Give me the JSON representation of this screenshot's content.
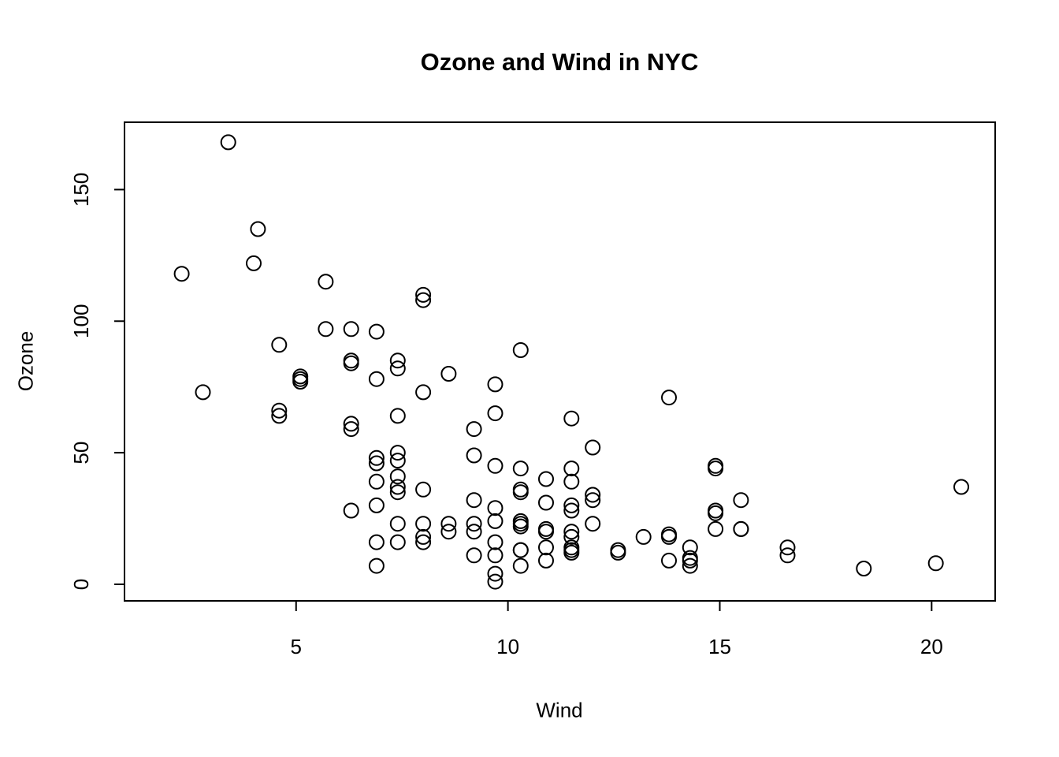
{
  "chart_data": {
    "type": "scatter",
    "title": "Ozone and Wind in NYC",
    "xlabel": "Wind",
    "ylabel": "Ozone",
    "x_ticks": [
      5,
      10,
      15,
      20
    ],
    "y_ticks": [
      0,
      50,
      100,
      150
    ],
    "xlim": [
      0.95,
      21.5
    ],
    "ylim": [
      -6.3,
      175.6
    ],
    "grid": false,
    "legend": null,
    "marker": "open-circle",
    "point_color": "#000000",
    "background": "#ffffff",
    "points": [
      [
        7.4,
        41
      ],
      [
        8.0,
        36
      ],
      [
        12.6,
        12
      ],
      [
        11.5,
        18
      ],
      [
        14.9,
        28
      ],
      [
        8.6,
        23
      ],
      [
        13.8,
        19
      ],
      [
        20.1,
        8
      ],
      [
        6.9,
        7
      ],
      [
        9.7,
        16
      ],
      [
        9.2,
        11
      ],
      [
        10.9,
        14
      ],
      [
        13.2,
        18
      ],
      [
        11.5,
        14
      ],
      [
        12.0,
        34
      ],
      [
        18.4,
        6
      ],
      [
        11.5,
        30
      ],
      [
        9.7,
        11
      ],
      [
        9.7,
        1
      ],
      [
        16.6,
        11
      ],
      [
        9.7,
        4
      ],
      [
        12.0,
        32
      ],
      [
        12.0,
        23
      ],
      [
        14.9,
        45
      ],
      [
        5.7,
        115
      ],
      [
        7.4,
        37
      ],
      [
        9.7,
        29
      ],
      [
        13.8,
        71
      ],
      [
        11.5,
        39
      ],
      [
        8.0,
        23
      ],
      [
        14.9,
        21
      ],
      [
        20.7,
        37
      ],
      [
        9.2,
        20
      ],
      [
        11.5,
        12
      ],
      [
        10.3,
        13
      ],
      [
        4.1,
        135
      ],
      [
        9.2,
        49
      ],
      [
        9.2,
        32
      ],
      [
        4.6,
        64
      ],
      [
        10.9,
        40
      ],
      [
        5.1,
        77
      ],
      [
        6.3,
        97
      ],
      [
        5.7,
        97
      ],
      [
        7.4,
        85
      ],
      [
        14.3,
        10
      ],
      [
        14.9,
        27
      ],
      [
        14.3,
        7
      ],
      [
        6.9,
        48
      ],
      [
        10.3,
        35
      ],
      [
        6.3,
        61
      ],
      [
        5.1,
        79
      ],
      [
        11.5,
        63
      ],
      [
        6.9,
        16
      ],
      [
        8.6,
        80
      ],
      [
        8.0,
        108
      ],
      [
        8.6,
        20
      ],
      [
        12.0,
        52
      ],
      [
        7.4,
        82
      ],
      [
        7.4,
        50
      ],
      [
        7.4,
        64
      ],
      [
        9.2,
        59
      ],
      [
        6.9,
        39
      ],
      [
        13.8,
        9
      ],
      [
        7.4,
        16
      ],
      [
        6.9,
        78
      ],
      [
        7.4,
        35
      ],
      [
        4.6,
        66
      ],
      [
        4.0,
        122
      ],
      [
        10.3,
        89
      ],
      [
        8.0,
        110
      ],
      [
        11.5,
        44
      ],
      [
        11.5,
        28
      ],
      [
        9.7,
        65
      ],
      [
        10.3,
        22
      ],
      [
        6.3,
        59
      ],
      [
        7.4,
        23
      ],
      [
        10.9,
        31
      ],
      [
        10.3,
        44
      ],
      [
        15.5,
        21
      ],
      [
        14.3,
        9
      ],
      [
        9.7,
        45
      ],
      [
        3.4,
        168
      ],
      [
        8.0,
        73
      ],
      [
        9.7,
        76
      ],
      [
        2.3,
        118
      ],
      [
        6.3,
        84
      ],
      [
        6.3,
        85
      ],
      [
        6.9,
        96
      ],
      [
        5.1,
        78
      ],
      [
        2.8,
        73
      ],
      [
        4.6,
        91
      ],
      [
        7.4,
        47
      ],
      [
        15.5,
        32
      ],
      [
        10.9,
        20
      ],
      [
        10.3,
        23
      ],
      [
        10.9,
        21
      ],
      [
        9.7,
        24
      ],
      [
        14.9,
        44
      ],
      [
        15.5,
        21
      ],
      [
        6.3,
        28
      ],
      [
        10.9,
        9
      ],
      [
        11.5,
        13
      ],
      [
        6.9,
        46
      ],
      [
        13.8,
        18
      ],
      [
        10.3,
        13
      ],
      [
        10.3,
        24
      ],
      [
        8.0,
        16
      ],
      [
        12.6,
        13
      ],
      [
        9.2,
        23
      ],
      [
        10.3,
        36
      ],
      [
        10.3,
        7
      ],
      [
        16.6,
        14
      ],
      [
        6.9,
        30
      ],
      [
        14.3,
        14
      ],
      [
        8.0,
        18
      ],
      [
        11.5,
        20
      ]
    ]
  }
}
